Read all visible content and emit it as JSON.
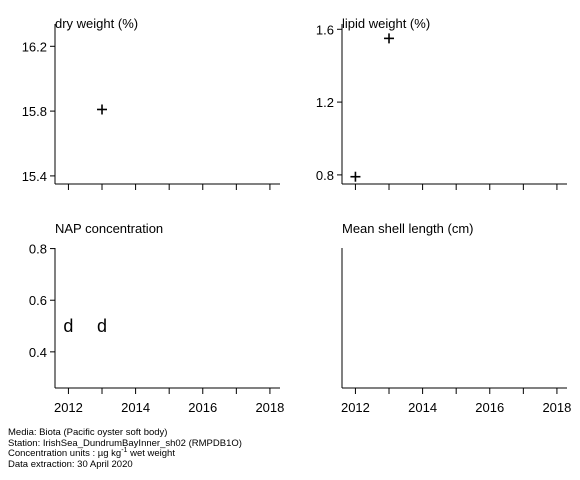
{
  "chart_data": [
    {
      "type": "scatter",
      "title": "dry weight (%)",
      "x_ticks": [
        2012,
        2014,
        2016,
        2018
      ],
      "x_minor": [
        2013,
        2015,
        2017
      ],
      "xlim": [
        2011.6,
        2018.3
      ],
      "show_x_labels": false,
      "y_ticks": [
        15.4,
        15.8,
        16.2
      ],
      "y_tick_labels": [
        "15.4",
        "15.8",
        "16.2"
      ],
      "ylim": [
        15.35,
        16.35
      ],
      "points": [
        {
          "x": 2013,
          "y": 15.81,
          "marker": "plus"
        }
      ]
    },
    {
      "type": "scatter",
      "title": "lipid weight (%)",
      "x_ticks": [
        2012,
        2014,
        2016,
        2018
      ],
      "x_minor": [
        2013,
        2015,
        2017
      ],
      "xlim": [
        2011.6,
        2018.3
      ],
      "show_x_labels": false,
      "y_ticks": [
        0.8,
        1.2,
        1.6
      ],
      "y_tick_labels": [
        "0.8",
        "1.2",
        "1.6"
      ],
      "ylim": [
        0.75,
        1.64
      ],
      "points": [
        {
          "x": 2012,
          "y": 0.79,
          "marker": "plus"
        },
        {
          "x": 2013,
          "y": 1.55,
          "marker": "plus"
        }
      ]
    },
    {
      "type": "scatter",
      "title": "NAP concentration",
      "x_ticks": [
        2012,
        2014,
        2016,
        2018
      ],
      "x_minor": [
        2013,
        2015,
        2017
      ],
      "xlim": [
        2011.6,
        2018.3
      ],
      "show_x_labels": true,
      "y_ticks": [
        0.4,
        0.6,
        0.8
      ],
      "y_tick_labels": [
        "0.4",
        "0.6",
        "0.8"
      ],
      "ylim": [
        0.26,
        0.81
      ],
      "points": [
        {
          "x": 2012,
          "y": 0.5,
          "marker": "text",
          "label": "d"
        },
        {
          "x": 2013,
          "y": 0.5,
          "marker": "text",
          "label": "d"
        }
      ]
    },
    {
      "type": "scatter",
      "title": "Mean shell length (cm)",
      "x_ticks": [
        2012,
        2014,
        2016,
        2018
      ],
      "x_minor": [
        2013,
        2015,
        2017
      ],
      "xlim": [
        2011.6,
        2018.3
      ],
      "show_x_labels": true,
      "y_ticks": [],
      "y_tick_labels": [],
      "ylim": [
        0,
        1
      ],
      "points": []
    }
  ],
  "footer": {
    "media": "Media: Biota (Pacific oyster soft body)",
    "station": "Station: IrishSea_DundrumBayInner_sh02 (RMPDB1O)",
    "units_prefix": "Concentration units : µg kg",
    "units_sup": "-1",
    "units_suffix": " wet weight",
    "extraction": "Data extraction: 30 April 2020"
  }
}
